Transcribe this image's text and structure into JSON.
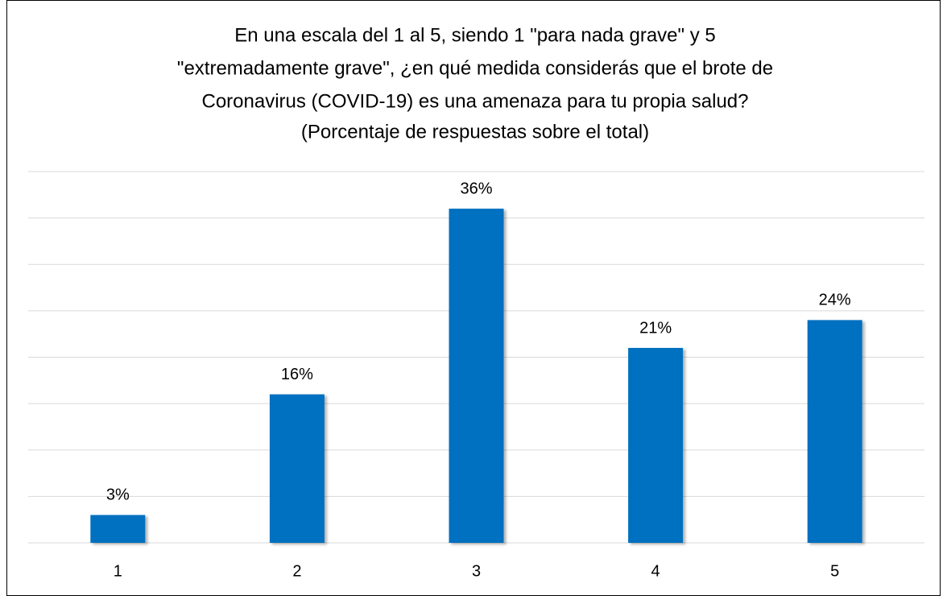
{
  "chart_data": {
    "type": "bar",
    "title": [
      "En una escala del 1 al 5, siendo 1 \"para nada grave\" y 5",
      "\"extremadamente grave\", ¿en qué medida considerás que el brote de",
      "Coronavirus (COVID-19) es una amenaza para tu propia salud?"
    ],
    "subtitle": "(Porcentaje de respuestas sobre el total)",
    "categories": [
      "1",
      "2",
      "3",
      "4",
      "5"
    ],
    "values": [
      3,
      16,
      36,
      21,
      24
    ],
    "value_labels": [
      "3%",
      "16%",
      "36%",
      "21%",
      "24%"
    ],
    "color": "#0070c0",
    "ylim": [
      0,
      40
    ],
    "yticks": [
      0,
      5,
      10,
      15,
      20,
      25,
      30,
      35,
      40
    ],
    "grid": true
  }
}
